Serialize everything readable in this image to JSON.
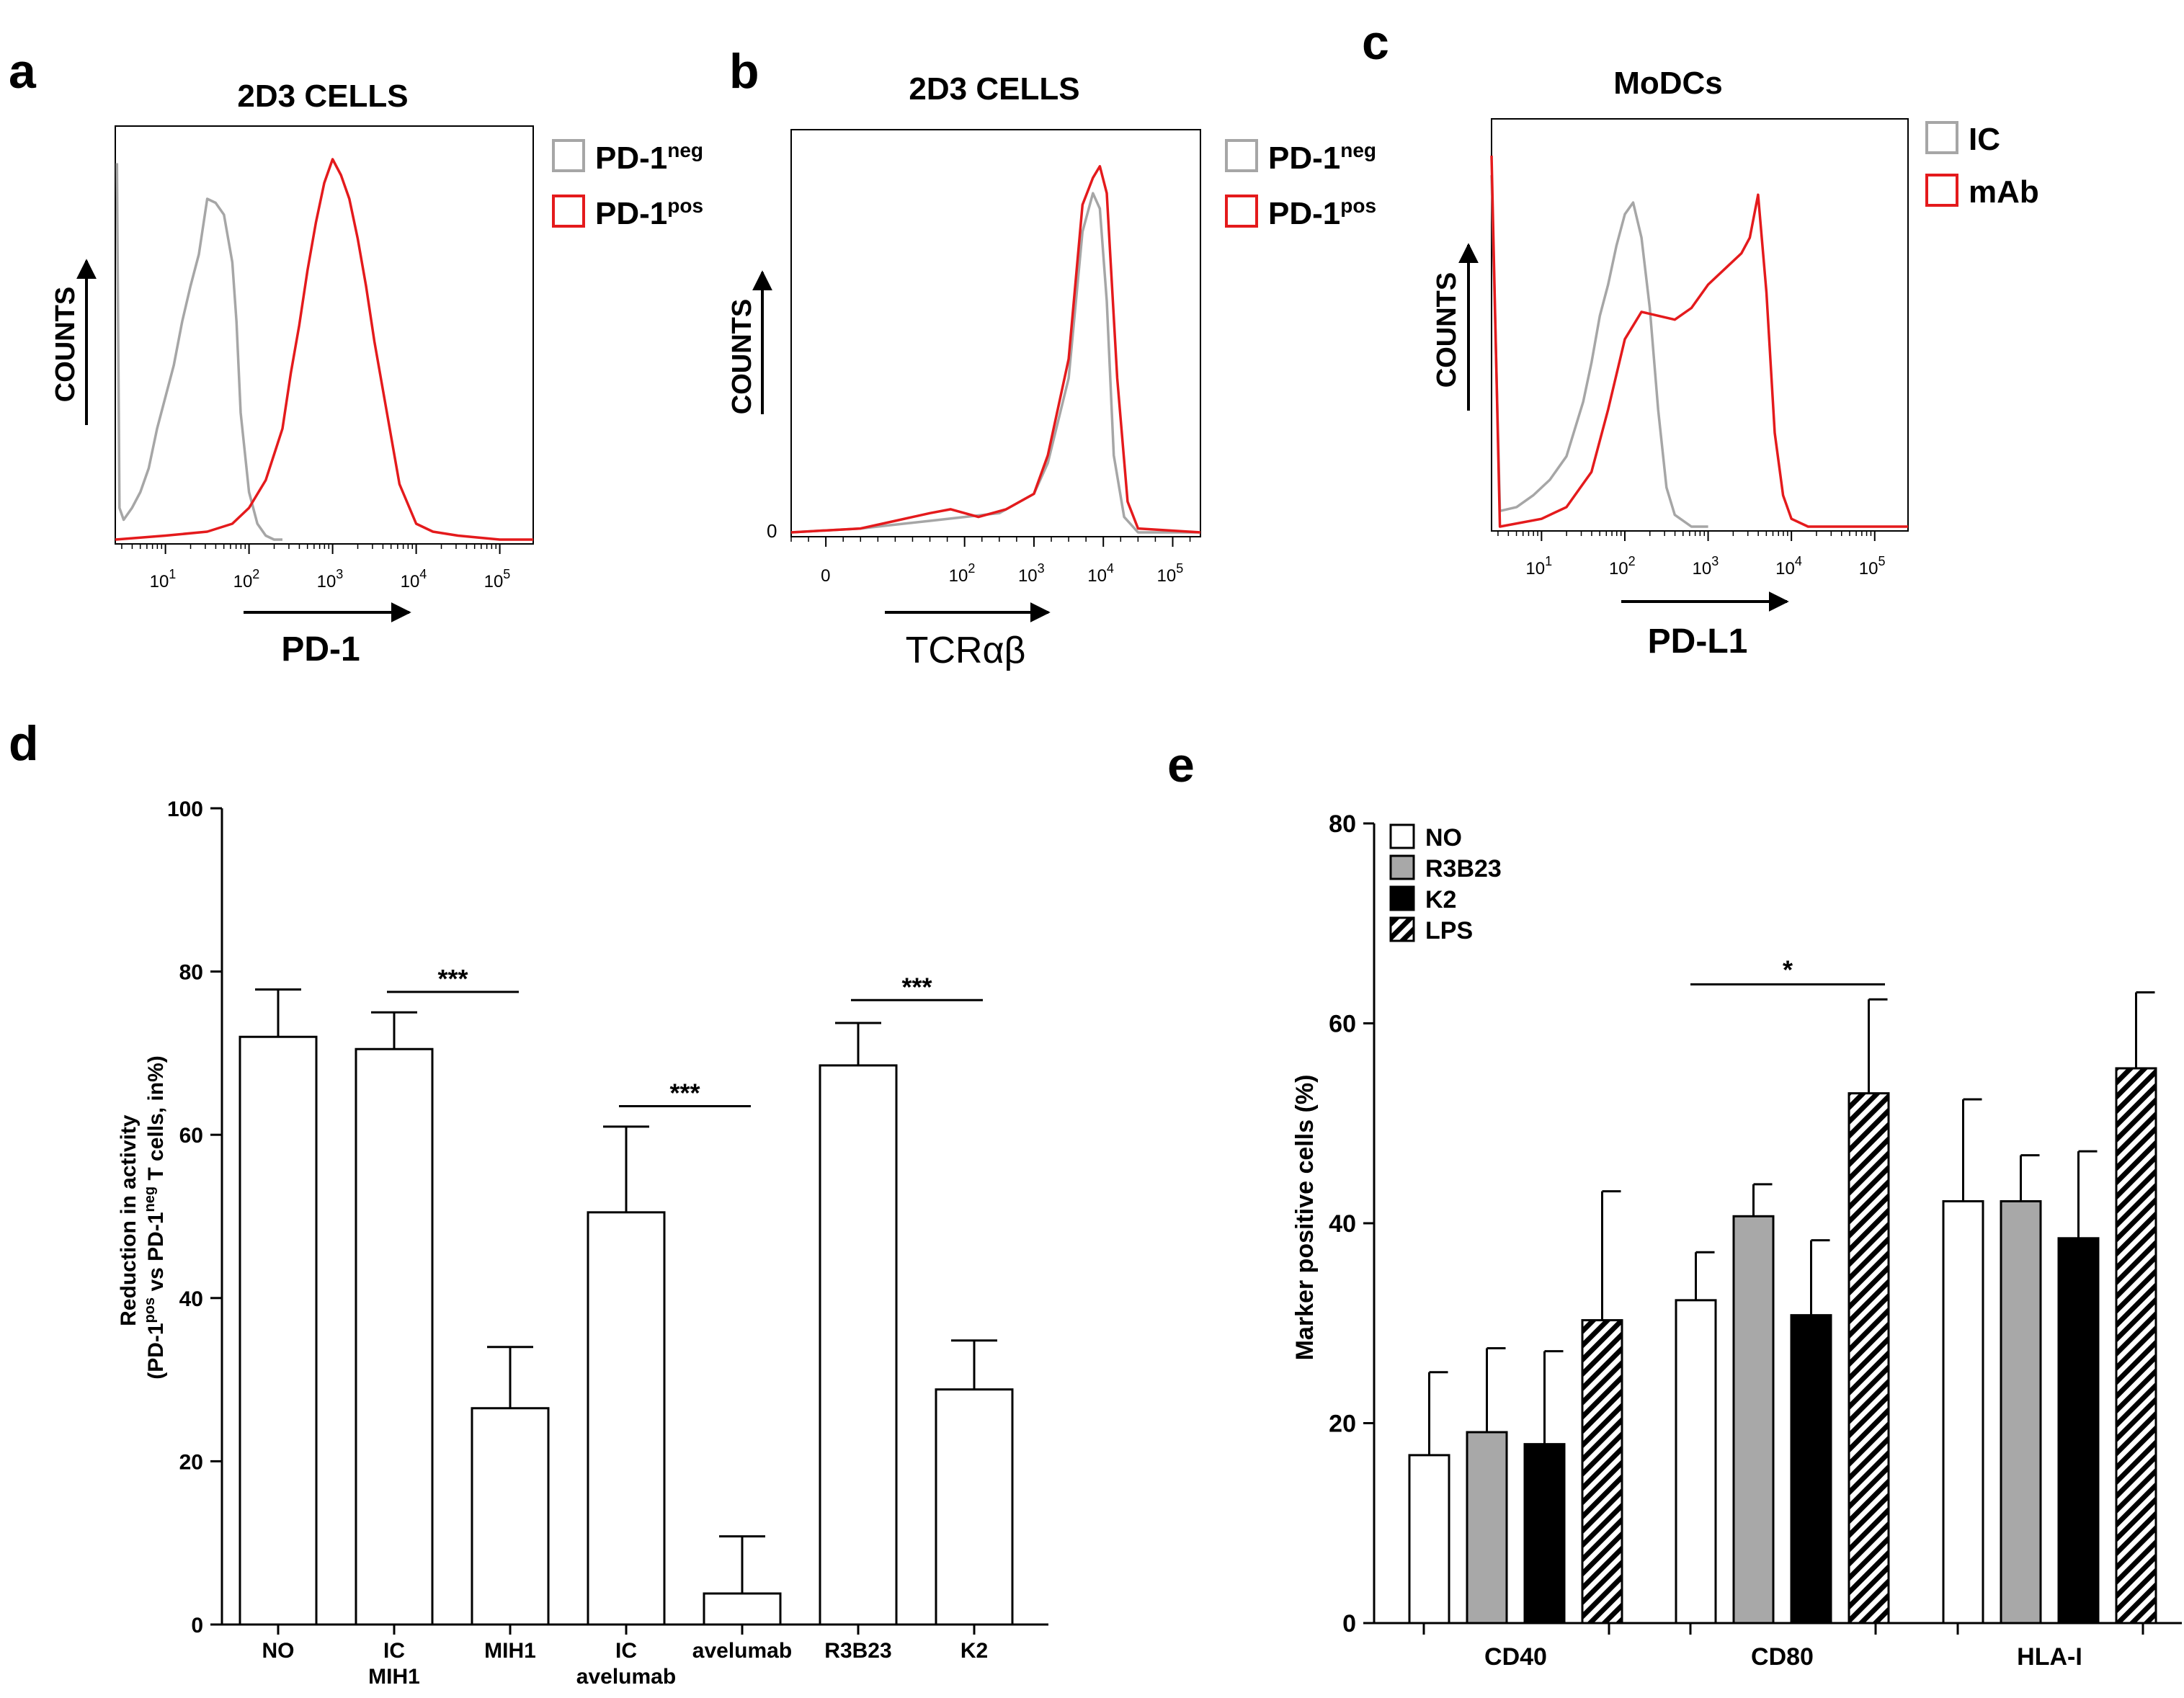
{
  "panel_letters": [
    "a",
    "b",
    "c",
    "d",
    "e"
  ],
  "colors": {
    "neg": "#a6a6a6",
    "pos": "#e41a1c",
    "axis": "#000000",
    "grey_bar": "#a8a8a8",
    "black_bar": "#000000"
  },
  "chart_data": [
    {
      "panel": "a",
      "type": "line",
      "title": "2D3 CELLS",
      "xlabel": "PD-1",
      "ylabel": "COUNTS",
      "x_scale": "log10",
      "xlim_log10": [
        0.4,
        5.4
      ],
      "ylim": [
        0,
        100
      ],
      "xticks": [
        "1",
        "2",
        "3",
        "4",
        "5"
      ],
      "legend": {
        "position": "top-right",
        "entries": [
          {
            "base": "PD-1",
            "sup": "neg"
          },
          {
            "base": "PD-1",
            "sup": "pos"
          }
        ]
      },
      "series": [
        {
          "name": "PD-1neg",
          "color_key": "neg",
          "x_log10": [
            0.42,
            0.45,
            0.5,
            0.6,
            0.7,
            0.8,
            0.9,
            1.0,
            1.1,
            1.2,
            1.3,
            1.4,
            1.5,
            1.6,
            1.7,
            1.8,
            1.85,
            1.9,
            2.0,
            2.1,
            2.2,
            2.3,
            2.4
          ],
          "y": [
            95,
            8,
            5,
            8,
            12,
            18,
            28,
            36,
            44,
            55,
            64,
            72,
            86,
            85,
            82,
            70,
            55,
            32,
            12,
            4,
            1,
            0,
            0
          ]
        },
        {
          "name": "PD-1pos",
          "color_key": "pos",
          "x_log10": [
            0.4,
            1.0,
            1.5,
            1.8,
            2.0,
            2.2,
            2.4,
            2.5,
            2.6,
            2.7,
            2.8,
            2.9,
            3.0,
            3.1,
            3.2,
            3.3,
            3.4,
            3.5,
            3.6,
            3.7,
            3.8,
            4.0,
            4.2,
            4.5,
            5.0,
            5.4
          ],
          "y": [
            0,
            1,
            2,
            4,
            8,
            15,
            28,
            42,
            54,
            68,
            80,
            90,
            96,
            92,
            86,
            76,
            64,
            50,
            38,
            26,
            14,
            4,
            2,
            1,
            0,
            0
          ]
        }
      ]
    },
    {
      "panel": "b",
      "type": "line",
      "title": "2D3 CELLS",
      "xlabel": "TCRαβ",
      "ylabel": "COUNTS",
      "x_scale": "logicle",
      "xlim": [
        -0.5,
        5.4
      ],
      "ylim": [
        0,
        100
      ],
      "y_tick_label": "0",
      "xticks": [
        {
          "label": "0"
        },
        {
          "label": "10",
          "sup": "2"
        },
        {
          "label": "10",
          "sup": "3"
        },
        {
          "label": "10",
          "sup": "4"
        },
        {
          "label": "10",
          "sup": "5"
        }
      ],
      "legend": {
        "position": "top-right",
        "entries": [
          {
            "base": "PD-1",
            "sup": "neg"
          },
          {
            "base": "PD-1",
            "sup": "pos"
          }
        ]
      },
      "series": [
        {
          "name": "PD-1neg",
          "color_key": "neg",
          "x_pos": [
            -0.5,
            0.5,
            1.0,
            1.5,
            2.0,
            2.5,
            3.0,
            3.2,
            3.5,
            3.7,
            3.85,
            3.95,
            4.05,
            4.15,
            4.3,
            4.5,
            5.4
          ],
          "y": [
            0,
            1,
            2,
            3,
            4,
            5,
            10,
            18,
            40,
            78,
            88,
            84,
            60,
            20,
            4,
            0,
            0
          ]
        },
        {
          "name": "PD-1pos",
          "color_key": "pos",
          "x_pos": [
            -0.5,
            0.5,
            1.0,
            1.5,
            1.8,
            2.2,
            2.6,
            3.0,
            3.2,
            3.5,
            3.7,
            3.85,
            3.95,
            4.05,
            4.2,
            4.35,
            4.5,
            5.4
          ],
          "y": [
            0,
            1,
            3,
            5,
            6,
            4,
            6,
            10,
            20,
            45,
            85,
            92,
            95,
            88,
            40,
            8,
            1,
            0
          ]
        }
      ]
    },
    {
      "panel": "c",
      "type": "line",
      "title": "MoDCs",
      "xlabel": "PD-L1",
      "ylabel": "COUNTS",
      "x_scale": "log10",
      "xlim_log10": [
        0.4,
        5.4
      ],
      "ylim": [
        0,
        100
      ],
      "xticks": [
        "1",
        "2",
        "3",
        "4",
        "5"
      ],
      "legend": {
        "position": "top-right",
        "entries": [
          {
            "base": "IC",
            "sup": ""
          },
          {
            "base": "mAb",
            "sup": ""
          }
        ]
      },
      "series": [
        {
          "name": "IC",
          "color_key": "neg",
          "x_log10": [
            0.4,
            0.5,
            0.7,
            0.9,
            1.1,
            1.3,
            1.5,
            1.6,
            1.7,
            1.8,
            1.9,
            2.0,
            2.1,
            2.2,
            2.3,
            2.4,
            2.5,
            2.6,
            2.8,
            3.0
          ],
          "y": [
            90,
            4,
            5,
            8,
            12,
            18,
            32,
            42,
            54,
            62,
            72,
            80,
            83,
            74,
            56,
            30,
            10,
            3,
            0,
            0
          ]
        },
        {
          "name": "mAb",
          "color_key": "pos",
          "x_log10": [
            0.4,
            0.5,
            1.0,
            1.3,
            1.6,
            1.8,
            2.0,
            2.2,
            2.4,
            2.6,
            2.8,
            3.0,
            3.2,
            3.4,
            3.5,
            3.6,
            3.7,
            3.8,
            3.9,
            4.0,
            4.2,
            4.5,
            5.4
          ],
          "y": [
            95,
            0,
            2,
            5,
            14,
            30,
            48,
            55,
            54,
            53,
            56,
            62,
            66,
            70,
            74,
            85,
            60,
            24,
            8,
            2,
            0,
            0,
            0
          ]
        }
      ]
    },
    {
      "panel": "d",
      "type": "bar",
      "ylabel_line1": "Reduction in activity",
      "ylabel_line2": {
        "pre": "(PD-1",
        "sup1": "pos",
        "mid": " vs PD-1",
        "sup2": "neg",
        "post": " T cells, in%)"
      },
      "ylim": [
        0,
        100
      ],
      "yticks": [
        0,
        20,
        40,
        60,
        80,
        100
      ],
      "categories": [
        [
          "NO"
        ],
        [
          "IC",
          "MIH1"
        ],
        [
          "MIH1"
        ],
        [
          "IC",
          "avelumab"
        ],
        [
          "avelumab"
        ],
        [
          "R3B23"
        ],
        [
          "K2"
        ]
      ],
      "values": [
        72,
        70.5,
        26.5,
        50.5,
        3.8,
        68.5,
        28.8
      ],
      "errors": [
        5.8,
        4.5,
        7.5,
        10.5,
        7.0,
        5.2,
        6.0
      ],
      "significance": [
        {
          "from": 1,
          "to": 2,
          "label": "***",
          "y": 77.5
        },
        {
          "from": 3,
          "to": 4,
          "label": "***",
          "y": 63.5
        },
        {
          "from": 5,
          "to": 6,
          "label": "***",
          "y": 76.5
        }
      ]
    },
    {
      "panel": "e",
      "type": "bar",
      "ylabel": "Marker positive cells (%)",
      "ylim": [
        0,
        80
      ],
      "yticks": [
        0,
        20,
        40,
        60,
        80
      ],
      "categories": [
        "CD40",
        "CD80",
        "HLA-I"
      ],
      "legend": {
        "position": "top-left",
        "entries": [
          "NO",
          "R3B23",
          "K2",
          "LPS"
        ]
      },
      "series": [
        {
          "name": "NO",
          "fill": "white",
          "values": [
            16.8,
            32.3,
            42.2
          ],
          "errors": [
            8.3,
            4.8,
            10.2
          ]
        },
        {
          "name": "R3B23",
          "fill": "grey",
          "values": [
            19.1,
            40.7,
            42.2
          ],
          "errors": [
            8.4,
            3.2,
            4.6
          ]
        },
        {
          "name": "K2",
          "fill": "black",
          "values": [
            17.9,
            30.8,
            38.5
          ],
          "errors": [
            9.3,
            7.5,
            8.7
          ]
        },
        {
          "name": "LPS",
          "fill": "hatch",
          "values": [
            30.3,
            53.0,
            55.5
          ],
          "errors": [
            12.9,
            9.4,
            7.6
          ]
        }
      ],
      "significance": [
        {
          "from_category": 1,
          "from_series": 0,
          "to_category": 1,
          "to_series": 3,
          "label": "*",
          "y": 63.9
        }
      ]
    }
  ]
}
